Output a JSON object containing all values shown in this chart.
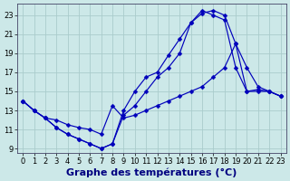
{
  "background_color": "#cce8e8",
  "grid_color": "#aacccc",
  "line_color": "#0000bb",
  "xlabel": "Graphe des températures (°C)",
  "x_ticks": [
    0,
    1,
    2,
    3,
    4,
    5,
    6,
    7,
    8,
    9,
    10,
    11,
    12,
    13,
    14,
    15,
    16,
    17,
    18,
    19,
    20,
    21,
    22,
    23
  ],
  "y_ticks": [
    9,
    11,
    13,
    15,
    17,
    19,
    21,
    23
  ],
  "ylim": [
    8.5,
    24.2
  ],
  "xlim": [
    -0.5,
    23.5
  ],
  "line1_x": [
    0,
    1,
    2,
    3,
    4,
    5,
    6,
    7,
    8,
    9,
    10,
    11,
    12,
    13,
    14,
    15,
    16,
    17,
    18,
    19,
    20,
    21,
    22,
    23
  ],
  "line1_y": [
    14.0,
    13.0,
    12.2,
    11.2,
    10.5,
    10.0,
    9.5,
    9.0,
    9.5,
    13.0,
    15.0,
    16.5,
    17.0,
    18.8,
    20.5,
    22.2,
    23.5,
    23.0,
    22.5,
    17.5,
    15.0,
    15.0,
    15.0,
    14.5
  ],
  "line2_x": [
    0,
    1,
    2,
    3,
    4,
    5,
    6,
    7,
    8,
    9,
    10,
    11,
    12,
    13,
    14,
    15,
    16,
    17,
    18,
    19,
    20,
    21,
    22,
    23
  ],
  "line2_y": [
    14.0,
    13.0,
    12.2,
    11.2,
    10.5,
    10.0,
    9.5,
    9.0,
    9.5,
    12.5,
    13.5,
    15.0,
    16.5,
    17.5,
    19.0,
    22.2,
    23.2,
    23.5,
    23.0,
    20.0,
    17.5,
    15.5,
    15.0,
    14.5
  ],
  "line3_x": [
    0,
    1,
    2,
    3,
    4,
    5,
    6,
    7,
    8,
    9,
    10,
    11,
    12,
    13,
    14,
    15,
    16,
    17,
    18,
    19,
    20,
    21,
    22,
    23
  ],
  "line3_y": [
    14.0,
    13.0,
    12.2,
    12.0,
    11.5,
    11.2,
    11.0,
    10.5,
    13.5,
    12.2,
    12.5,
    13.0,
    13.5,
    14.0,
    14.5,
    15.0,
    15.5,
    16.5,
    17.5,
    20.0,
    15.0,
    15.2,
    15.0,
    14.5
  ],
  "xlabel_fontsize": 8,
  "tick_fontsize": 6
}
